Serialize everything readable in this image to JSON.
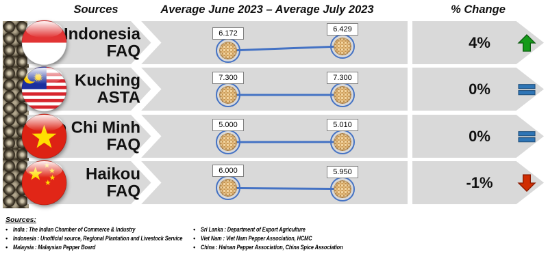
{
  "header": {
    "col_sources": "Sources",
    "col_period": "Average June 2023 – Average July 2023",
    "col_change": "% Change"
  },
  "rows": [
    {
      "name": "Indonesia",
      "grade": "FAQ",
      "flag": "indonesia-flag",
      "june": "6.172",
      "july": "6.429",
      "change": "4%",
      "trend": "up"
    },
    {
      "name": "Kuching",
      "grade": "ASTA",
      "flag": "malaysia-flag",
      "june": "7.300",
      "july": "7.300",
      "change": "0%",
      "trend": "flat"
    },
    {
      "name": "Ho Chi Minh",
      "grade": "FAQ",
      "flag": "vietnam-flag",
      "june": "5.000",
      "july": "5.010",
      "change": "0%",
      "trend": "down-none-flat"
    },
    {
      "name": "Haikou",
      "grade": "FAQ",
      "flag": "china-flag",
      "june": "6.000",
      "july": "5.950",
      "change": "-1%",
      "trend": "down"
    }
  ],
  "footer": {
    "title": "Sources:",
    "left": [
      "India : The Indian Chamber of Commerce & Industry",
      "Indonesia : Unofficial source, Regional Plantation and Livestock Service",
      "Malaysia : Malaysian Pepper Board"
    ],
    "right": [
      "Sri Lanka : Department of Export Agriculture",
      "Viet Nam : Viet Nam Pepper Association, HCMC",
      "China : Hainan Pepper Association, China Spice Association"
    ]
  },
  "colors": {
    "band_gray": "#d9d9d9",
    "line_blue": "#4472c4",
    "up_green": "#169b1a",
    "flat_blue": "#2e75b6",
    "down_red": "#d02d02"
  },
  "chart_data": {
    "type": "line",
    "title": "Average June 2023 – Average July 2023",
    "categories": [
      "Average June 2023",
      "Average July 2023"
    ],
    "series": [
      {
        "name": "Indonesia FAQ",
        "values": [
          6.172,
          6.429
        ],
        "percent_change": 4
      },
      {
        "name": "Kuching ASTA",
        "values": [
          7.3,
          7.3
        ],
        "percent_change": 0
      },
      {
        "name": "Ho Chi Minh FAQ",
        "values": [
          5.0,
          5.01
        ],
        "percent_change": 0
      },
      {
        "name": "Haikou FAQ",
        "values": [
          6.0,
          5.95
        ],
        "percent_change": -1
      }
    ],
    "legend": "none",
    "grid": false,
    "marker": "peppercorn-cluster",
    "data_labels": true
  }
}
